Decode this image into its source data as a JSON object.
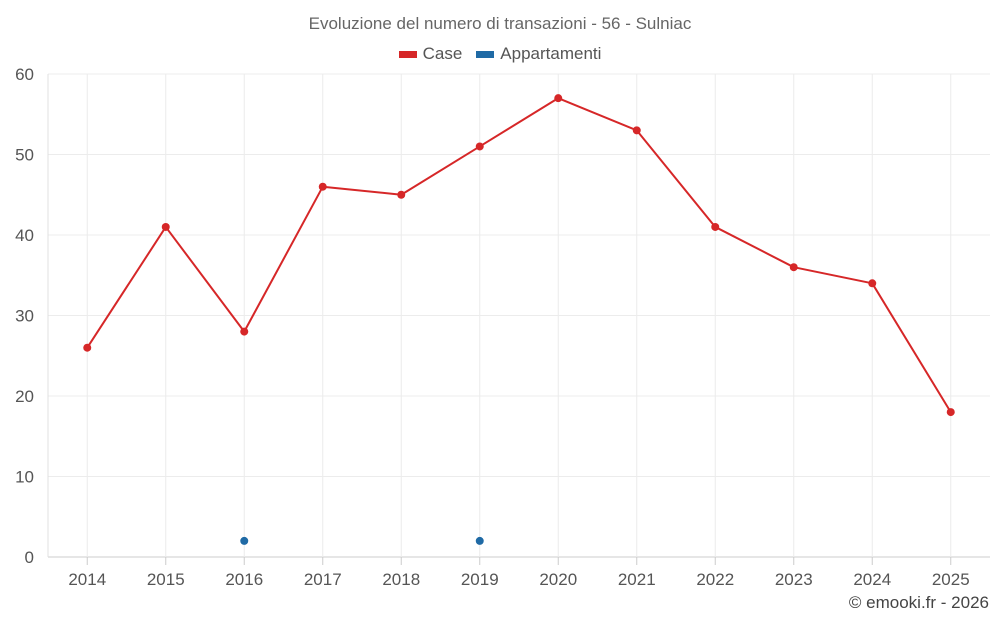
{
  "chart_data": {
    "type": "line",
    "title": "Evoluzione del numero di transazioni - 56 - Sulniac",
    "categories": [
      "2014",
      "2015",
      "2016",
      "2017",
      "2018",
      "2019",
      "2020",
      "2021",
      "2022",
      "2023",
      "2024",
      "2025"
    ],
    "series": [
      {
        "name": "Case",
        "color": "#d62728",
        "values": [
          26,
          41,
          28,
          46,
          45,
          51,
          57,
          53,
          41,
          36,
          34,
          18
        ]
      },
      {
        "name": "Appartamenti",
        "color": "#1f6aa5",
        "values": [
          null,
          null,
          2,
          null,
          null,
          2,
          null,
          null,
          null,
          null,
          null,
          null
        ]
      }
    ],
    "ylim": [
      0,
      60
    ],
    "yticks": [
      0,
      10,
      20,
      30,
      40,
      50,
      60
    ],
    "grid": true,
    "legend": "top-center"
  },
  "credit": "© emooki.fr - 2026"
}
